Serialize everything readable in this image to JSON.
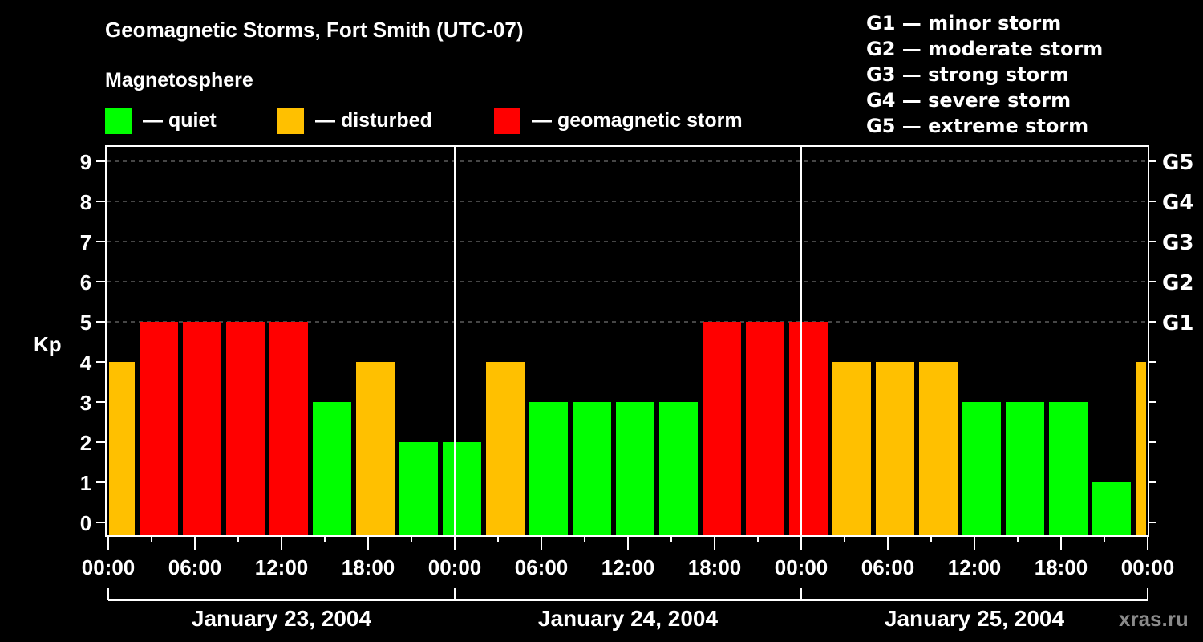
{
  "title": "Geomagnetic Storms, Fort Smith (UTC-07)",
  "subtitle": "Magnetosphere",
  "legend": [
    {
      "label": "— quiet",
      "color": "#00ff00"
    },
    {
      "label": "— disturbed",
      "color": "#ffc000"
    },
    {
      "label": "— geomagnetic storm",
      "color": "#ff0000"
    }
  ],
  "g_scale": [
    "G1 — minor storm",
    "G2 — moderate storm",
    "G3 — strong storm",
    "G4 — severe storm",
    "G5 — extreme storm"
  ],
  "watermark": "xras.ru",
  "chart_data": {
    "type": "bar",
    "title": "Geomagnetic Storms, Fort Smith (UTC-07)",
    "xlabel": "",
    "ylabel": "Kp",
    "ylim": [
      0,
      9
    ],
    "grid": "horizontal dashed at Kp 5-9",
    "y_ticks": [
      0,
      1,
      2,
      3,
      4,
      5,
      6,
      7,
      8,
      9
    ],
    "right_axis_ticks": [
      {
        "kp": 5,
        "label": "G1"
      },
      {
        "kp": 6,
        "label": "G2"
      },
      {
        "kp": 7,
        "label": "G3"
      },
      {
        "kp": 8,
        "label": "G4"
      },
      {
        "kp": 9,
        "label": "G5"
      }
    ],
    "x_tick_labels": [
      "00:00",
      "06:00",
      "12:00",
      "18:00",
      "00:00",
      "06:00",
      "12:00",
      "18:00",
      "00:00",
      "06:00",
      "12:00",
      "18:00",
      "00:00"
    ],
    "date_labels": [
      "January 23, 2004",
      "January 24, 2004",
      "January 25, 2004"
    ],
    "interval_hours": 3,
    "values": [
      4,
      5,
      5,
      5,
      5,
      3,
      4,
      2,
      2,
      4,
      3,
      3,
      3,
      3,
      5,
      5,
      5,
      4,
      4,
      4,
      3,
      3,
      3,
      1,
      4
    ],
    "color_rule": {
      "quiet": "Kp <= 3 → #00ff00",
      "disturbed": "Kp = 4 → #ffc000",
      "storm": "Kp >= 5 → #ff0000"
    },
    "legend": [
      "quiet",
      "disturbed",
      "geomagnetic storm"
    ],
    "legend_position": "top"
  }
}
